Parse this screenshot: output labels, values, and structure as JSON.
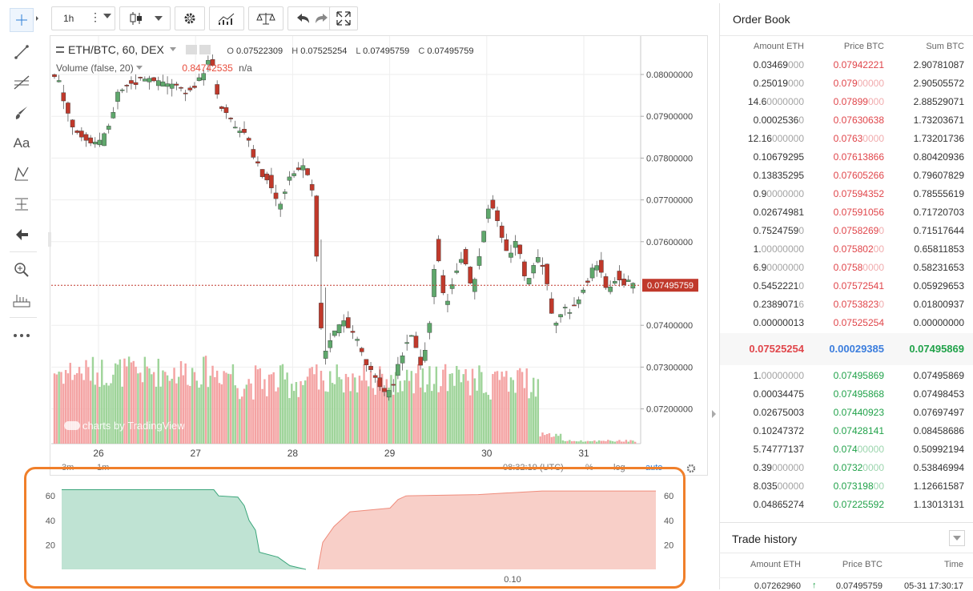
{
  "toolbar": {
    "interval": "1h",
    "icons": [
      "candles-icon",
      "settings-icon",
      "indicators-icon",
      "compare-icon",
      "undo-icon",
      "redo-icon",
      "fullscreen-icon"
    ]
  },
  "left_tools": [
    "crosshair-icon",
    "trendline-icon",
    "fib-icon",
    "brush-icon",
    "text-icon",
    "pattern-icon",
    "measure-icon",
    "back-arrow-icon",
    "zoom-icon",
    "ruler-icon",
    "more-icon"
  ],
  "left_text_tool": "Aa",
  "chart": {
    "symbol": "ETH/BTC, 60, DEX",
    "open_label": "O",
    "open": "0.07522309",
    "high_label": "H",
    "high": "0.07525254",
    "low_label": "L",
    "low": "0.07495759",
    "close_label": "C",
    "close": "0.07495759",
    "volume_label": "Volume (false, 20)",
    "volume_value": "0.84742535",
    "volume_ma": "n/a",
    "last_price": "0.07495759",
    "watermark": "charts by TradingView",
    "y_ticks": [
      "0.08000000",
      "0.07900000",
      "0.07800000",
      "0.07700000",
      "0.07600000",
      "0.07400000",
      "0.07300000",
      "0.07200000"
    ],
    "x_ticks": [
      "26",
      "27",
      "28",
      "29",
      "30",
      "31"
    ],
    "bottom": {
      "range1": "3m",
      "range2": "1m",
      "time": "08:32:19 (UTC)",
      "pct": "%",
      "log": "log",
      "auto": "auto"
    },
    "colors": {
      "up": "#5fa86c",
      "down": "#c0392b",
      "vol_up": "#9fd49a",
      "vol_down": "#f4a3a3",
      "last": "#c0392b"
    }
  },
  "depth": {
    "left_ticks": [
      "60",
      "40",
      "20"
    ],
    "right_ticks": [
      "60",
      "40",
      "20"
    ],
    "x_label": "0.10",
    "colors": {
      "bid_fill": "#bfe3d3",
      "bid_line": "#3aa57a",
      "ask_fill": "#f8cfc8",
      "ask_line": "#ef8c7c"
    }
  },
  "order_book": {
    "title": "Order Book",
    "headers": [
      "Amount ETH",
      "Price BTC",
      "Sum BTC"
    ],
    "asks": [
      {
        "amt": "0.03469",
        "amt_z": "000",
        "price": "0.07942221",
        "price_z": "",
        "sum": "2.90781087"
      },
      {
        "amt": "0.25019",
        "amt_z": "000",
        "price": "0.079",
        "price_z": "00000",
        "sum": "2.90505572"
      },
      {
        "amt": "14.6",
        "amt_z": "0000000",
        "price": "0.07899",
        "price_z": "000",
        "sum": "2.88529071"
      },
      {
        "amt": "0.0002536",
        "amt_z": "0",
        "price": "0.07630638",
        "price_z": "",
        "sum": "1.73203671"
      },
      {
        "amt": "12.16",
        "amt_z": "000000",
        "price": "0.0763",
        "price_z": "0000",
        "sum": "1.73201736"
      },
      {
        "amt": "0.10679295",
        "amt_z": "",
        "price": "0.07613866",
        "price_z": "",
        "sum": "0.80420936"
      },
      {
        "amt": "0.13835295",
        "amt_z": "",
        "price": "0.07605266",
        "price_z": "",
        "sum": "0.79607829"
      },
      {
        "amt": "0.9",
        "amt_z": "0000000",
        "price": "0.07594352",
        "price_z": "",
        "sum": "0.78555619"
      },
      {
        "amt": "0.02674981",
        "amt_z": "",
        "price": "0.07591056",
        "price_z": "",
        "sum": "0.71720703"
      },
      {
        "amt": "0.7524759",
        "amt_z": "0",
        "price": "0.0758269",
        "price_z": "0",
        "sum": "0.71517644"
      },
      {
        "amt": "1.",
        "amt_z": "00000000",
        "price": "0.075802",
        "price_z": "00",
        "sum": "0.65811853"
      },
      {
        "amt": "6.9",
        "amt_z": "0000000",
        "price": "0.0758",
        "price_z": "0000",
        "sum": "0.58231653"
      },
      {
        "amt": "0.5452221",
        "amt_z": "0",
        "price": "0.07572541",
        "price_z": "",
        "sum": "0.05929653"
      },
      {
        "amt": "0.2389071",
        "amt_z": "6",
        "price": "0.0753823",
        "price_z": "0",
        "sum": "0.01800937"
      },
      {
        "amt": "0.00000013",
        "amt_z": "",
        "price": "0.07525254",
        "price_z": "",
        "sum": "0.00000000"
      }
    ],
    "spread": {
      "ask": "0.07525254",
      "spread": "0.00029385",
      "bid": "0.07495869"
    },
    "bids": [
      {
        "amt": "1.",
        "amt_z": "00000000",
        "price": "0.07495869",
        "price_z": "",
        "sum": "0.07495869"
      },
      {
        "amt": "0.00034475",
        "amt_z": "",
        "price": "0.07495868",
        "price_z": "",
        "sum": "0.07498453"
      },
      {
        "amt": "0.02675003",
        "amt_z": "",
        "price": "0.07440923",
        "price_z": "",
        "sum": "0.07697497"
      },
      {
        "amt": "0.10247372",
        "amt_z": "",
        "price": "0.07428141",
        "price_z": "",
        "sum": "0.08458686"
      },
      {
        "amt": "5.74777137",
        "amt_z": "",
        "price": "0.074",
        "price_z": "00000",
        "sum": "0.50992194"
      },
      {
        "amt": "0.39",
        "amt_z": "000000",
        "price": "0.0732",
        "price_z": "0000",
        "sum": "0.53846994"
      },
      {
        "amt": "8.035",
        "amt_z": "00000",
        "price": "0.073198",
        "price_z": "00",
        "sum": "1.12661587"
      },
      {
        "amt": "0.04865274",
        "amt_z": "",
        "price": "0.07225592",
        "price_z": "",
        "sum": "1.13013131"
      }
    ]
  },
  "trade_history": {
    "title": "Trade history",
    "headers": [
      "Amount ETH",
      "Price BTC",
      "Time"
    ],
    "rows": [
      {
        "amt": "0.07262960",
        "price": "0.07495759",
        "time": "05-31 17:30:17"
      }
    ]
  }
}
